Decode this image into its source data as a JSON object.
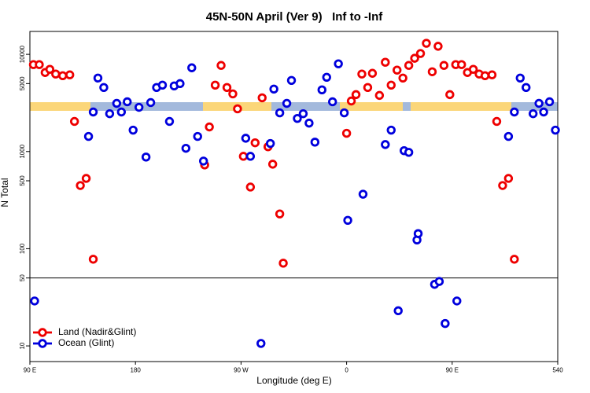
{
  "chart_data": {
    "type": "scatter",
    "title": "45N-50N April (Ver 9)   Inf to -Inf",
    "xlabel": "Longitude (deg E)",
    "ylabel": "N Total",
    "log_y": true,
    "xlim": [
      90,
      540
    ],
    "ylim": [
      6.9,
      17200
    ],
    "xticks": [
      {
        "value": 90,
        "label": "90 E"
      },
      180,
      {
        "value": 270,
        "label": "90 W"
      },
      {
        "value": 360,
        "label": "0"
      },
      {
        "value": 450,
        "label": "90 E"
      },
      540
    ],
    "yticks": [
      10,
      50,
      100,
      500,
      1000,
      5000,
      10000
    ],
    "hline": 50,
    "legend": "lower left",
    "series": [
      {
        "name": "Land (Nadir&Glint)",
        "color": "#ee0000",
        "x": [
          93,
          98,
          103,
          107,
          112,
          118,
          124,
          128,
          133,
          138,
          144,
          239,
          243,
          248,
          253,
          258,
          263,
          267,
          272,
          278,
          282,
          288,
          293,
          297,
          303,
          306,
          360,
          364,
          368,
          373,
          378,
          382,
          388,
          393,
          398,
          403,
          408,
          413,
          418,
          423,
          428,
          433,
          438,
          443,
          448,
          453,
          458,
          463,
          468,
          473,
          478,
          484,
          488,
          493,
          498,
          503
        ],
        "values": [
          7840,
          7840,
          6500,
          7010,
          6270,
          6030,
          6150,
          2040,
          447,
          529,
          78,
          728,
          1790,
          4820,
          7690,
          4560,
          3920,
          2750,
          893,
          431,
          1230,
          3570,
          1120,
          741,
          228,
          71,
          1540,
          3310,
          3850,
          6270,
          4560,
          6380,
          3780,
          8290,
          4820,
          6880,
          5700,
          7690,
          9110,
          10200,
          13000,
          6620,
          12100,
          7690,
          3850,
          7840,
          7840,
          6500,
          7010,
          6270,
          6030,
          6150,
          2040,
          447,
          529,
          78
        ]
      },
      {
        "name": "Ocean (Glint)",
        "color": "#0000dd",
        "x": [
          94,
          140,
          144,
          148,
          153,
          158,
          164,
          168,
          173,
          178,
          183,
          189,
          193,
          198,
          203,
          209,
          213,
          218,
          223,
          228,
          233,
          238,
          274,
          278,
          287,
          295,
          298,
          303,
          309,
          313,
          318,
          323,
          328,
          333,
          339,
          343,
          348,
          353,
          358,
          361,
          374,
          393,
          398,
          404,
          409,
          413,
          420,
          421,
          435,
          439,
          444,
          454,
          498,
          503,
          508,
          513,
          519,
          524,
          528,
          533,
          538
        ],
        "values": [
          29,
          1430,
          2550,
          5700,
          4560,
          2450,
          3130,
          2550,
          3250,
          1660,
          2850,
          877,
          3190,
          4560,
          4820,
          2040,
          4730,
          5000,
          1080,
          7270,
          1430,
          798,
          1370,
          893,
          10.6,
          1210,
          4390,
          2500,
          3130,
          5390,
          2190,
          2450,
          1960,
          1250,
          4310,
          5810,
          3250,
          7990,
          2500,
          196,
          364,
          1180,
          1660,
          23,
          1020,
          981,
          123,
          143,
          43,
          46,
          17,
          29,
          1430,
          2550,
          5700,
          4560,
          2450,
          3130,
          2550,
          3250,
          1660
        ]
      }
    ]
  }
}
